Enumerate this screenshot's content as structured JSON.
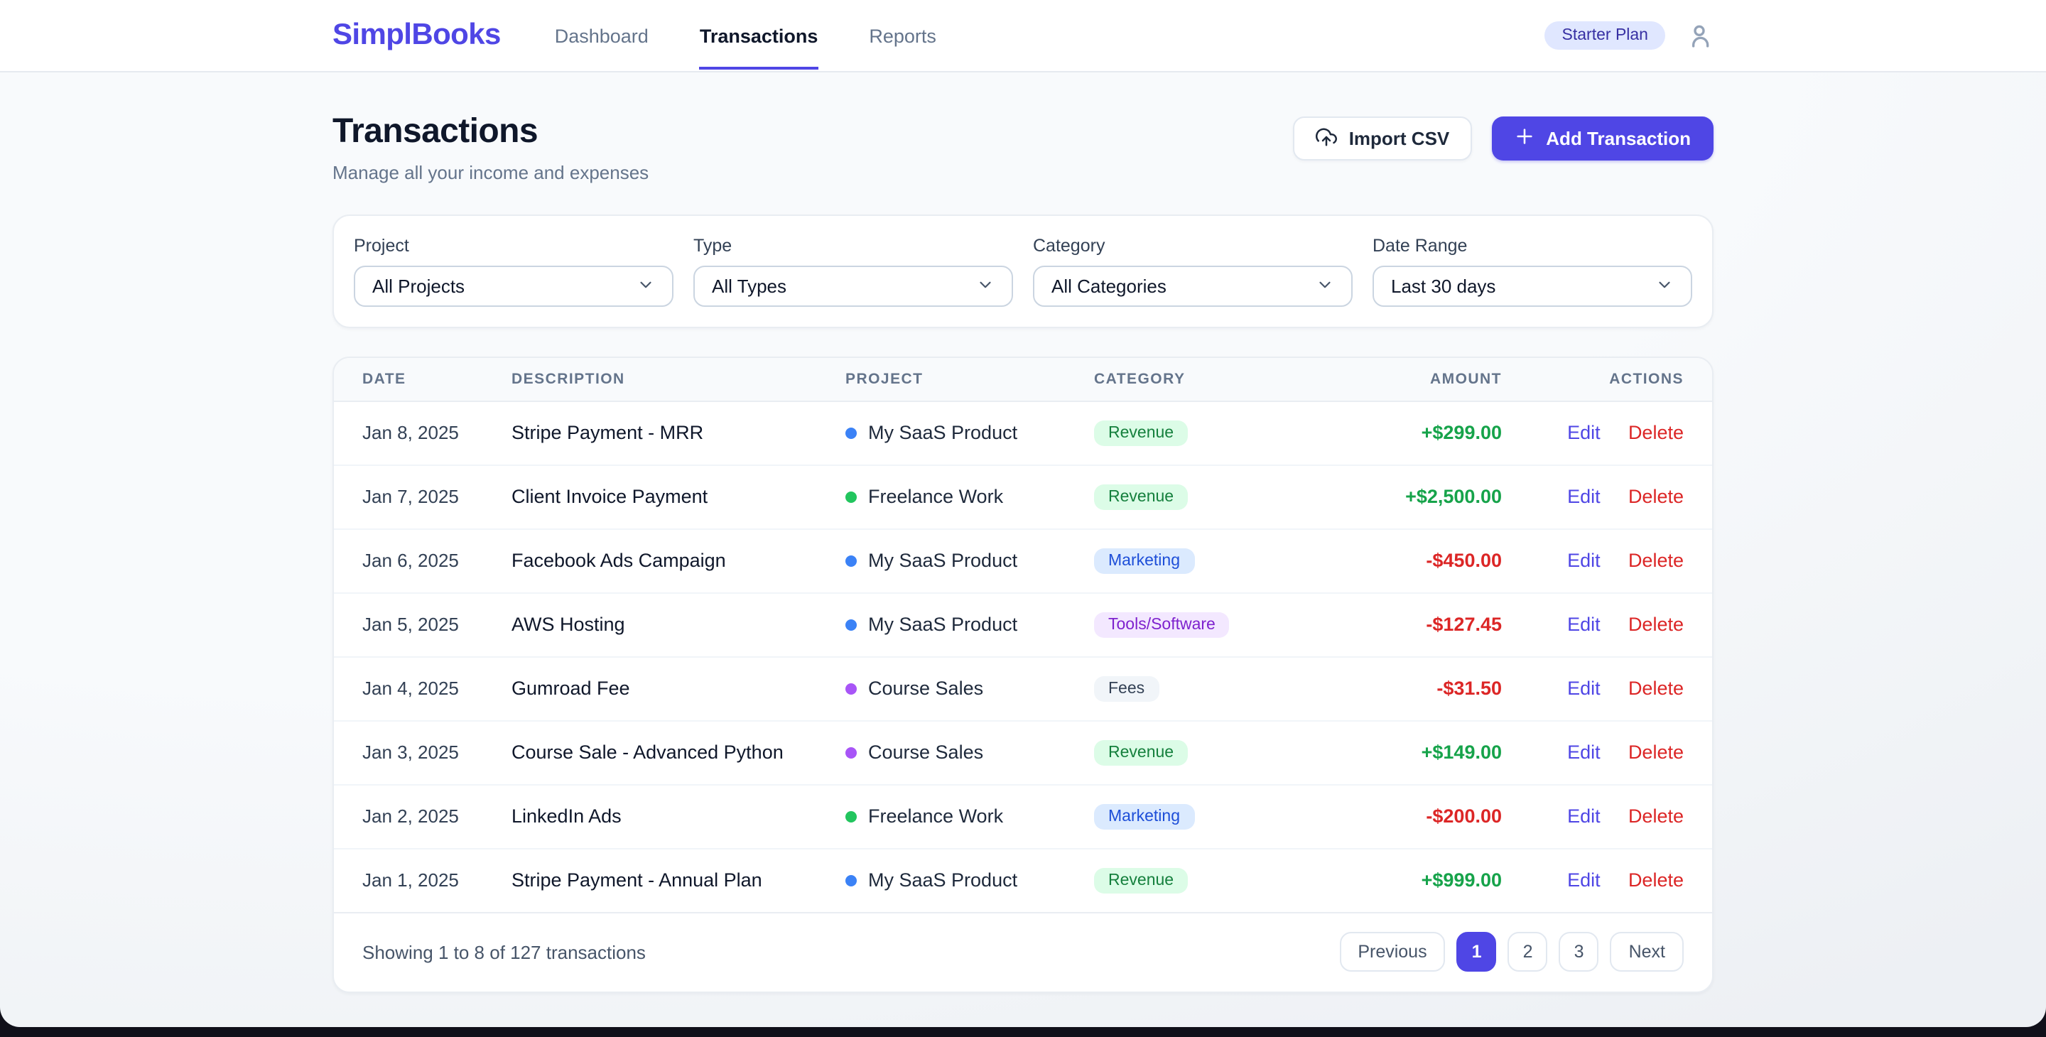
{
  "brand": "SimplBooks",
  "nav": {
    "items": [
      {
        "label": "Dashboard",
        "active": false
      },
      {
        "label": "Transactions",
        "active": true
      },
      {
        "label": "Reports",
        "active": false
      }
    ],
    "plan_badge": "Starter Plan"
  },
  "page": {
    "title": "Transactions",
    "subtitle": "Manage all your income and expenses",
    "import_button": "Import CSV",
    "add_button": "Add Transaction"
  },
  "filters": [
    {
      "label": "Project",
      "value": "All Projects"
    },
    {
      "label": "Type",
      "value": "All Types"
    },
    {
      "label": "Category",
      "value": "All Categories"
    },
    {
      "label": "Date Range",
      "value": "Last 30 days"
    }
  ],
  "table": {
    "columns": [
      "DATE",
      "DESCRIPTION",
      "PROJECT",
      "CATEGORY",
      "AMOUNT",
      "ACTIONS"
    ],
    "actions": {
      "edit": "Edit",
      "delete": "Delete"
    },
    "rows": [
      {
        "date": "Jan 8, 2025",
        "description": "Stripe Payment - MRR",
        "project": "My SaaS Product",
        "project_color": "#3B82F6",
        "category": "Revenue",
        "category_style": "revenue",
        "amount": "+$299.00",
        "amount_type": "income"
      },
      {
        "date": "Jan 7, 2025",
        "description": "Client Invoice Payment",
        "project": "Freelance Work",
        "project_color": "#22C55E",
        "category": "Revenue",
        "category_style": "revenue",
        "amount": "+$2,500.00",
        "amount_type": "income"
      },
      {
        "date": "Jan 6, 2025",
        "description": "Facebook Ads Campaign",
        "project": "My SaaS Product",
        "project_color": "#3B82F6",
        "category": "Marketing",
        "category_style": "marketing",
        "amount": "-$450.00",
        "amount_type": "expense"
      },
      {
        "date": "Jan 5, 2025",
        "description": "AWS Hosting",
        "project": "My SaaS Product",
        "project_color": "#3B82F6",
        "category": "Tools/Software",
        "category_style": "tools",
        "amount": "-$127.45",
        "amount_type": "expense"
      },
      {
        "date": "Jan 4, 2025",
        "description": "Gumroad Fee",
        "project": "Course Sales",
        "project_color": "#A855F7",
        "category": "Fees",
        "category_style": "fees",
        "amount": "-$31.50",
        "amount_type": "expense"
      },
      {
        "date": "Jan 3, 2025",
        "description": "Course Sale - Advanced Python",
        "project": "Course Sales",
        "project_color": "#A855F7",
        "category": "Revenue",
        "category_style": "revenue",
        "amount": "+$149.00",
        "amount_type": "income"
      },
      {
        "date": "Jan 2, 2025",
        "description": "LinkedIn Ads",
        "project": "Freelance Work",
        "project_color": "#22C55E",
        "category": "Marketing",
        "category_style": "marketing",
        "amount": "-$200.00",
        "amount_type": "expense"
      },
      {
        "date": "Jan 1, 2025",
        "description": "Stripe Payment - Annual Plan",
        "project": "My SaaS Product",
        "project_color": "#3B82F6",
        "category": "Revenue",
        "category_style": "revenue",
        "amount": "+$999.00",
        "amount_type": "income"
      }
    ]
  },
  "footer": {
    "summary": "Showing 1 to 8 of 127 transactions",
    "previous": "Previous",
    "next": "Next",
    "pages": [
      "1",
      "2",
      "3"
    ],
    "active_page": "1"
  },
  "palette": {
    "accent": "#4F46E5",
    "income": "#16A34A",
    "expense": "#DC2626",
    "badges": {
      "revenue": {
        "bg": "#DCFCE7",
        "fg": "#15803D"
      },
      "marketing": {
        "bg": "#DBEAFE",
        "fg": "#1D4ED8"
      },
      "tools": {
        "bg": "#F3E8FF",
        "fg": "#7E22CE"
      },
      "fees": {
        "bg": "#F1F5F9",
        "fg": "#334155"
      }
    }
  }
}
